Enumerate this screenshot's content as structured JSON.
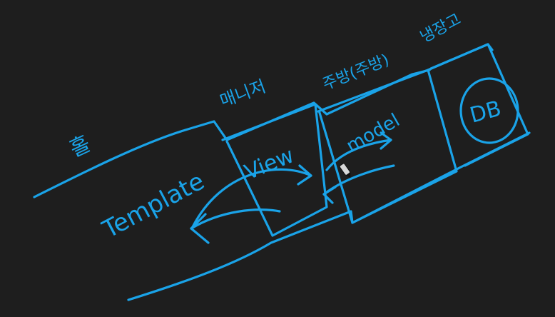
{
  "canvas": {
    "background": "#1e1e1e",
    "ink_color": "#1aa3e8"
  },
  "labels": {
    "home": "홀",
    "manager": "매니저",
    "kitchen": "주방(주방)",
    "fridge": "냉장고",
    "template": "Template",
    "view": "View",
    "model": "model",
    "db": "DB"
  },
  "icons": {
    "cursor": "pen-cursor-icon"
  }
}
